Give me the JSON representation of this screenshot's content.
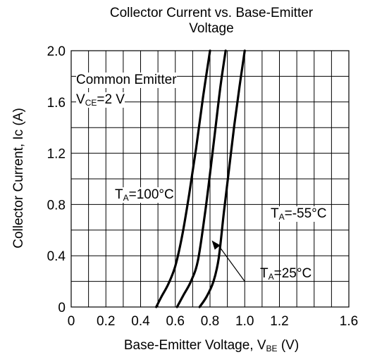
{
  "chart_data": {
    "type": "line",
    "title_line1": "Collector Current vs. Base-Emitter",
    "title_line2": "Voltage",
    "xlabel_main": "Base-Emitter Voltage, V",
    "xlabel_sub": "BE",
    "xlabel_unit": "(V)",
    "ylabel": "Collector Current, Ic (A)",
    "xlim": [
      0,
      1.6
    ],
    "ylim": [
      0,
      2.0
    ],
    "x_ticks": [
      "0",
      "0.2",
      "0.4",
      "0.6",
      "0.8",
      "1.0",
      "1.2",
      "1.6"
    ],
    "x_tick_values": [
      0,
      0.2,
      0.4,
      0.6,
      0.8,
      1.0,
      1.2,
      1.6
    ],
    "y_ticks": [
      "0",
      "0.4",
      "0.8",
      "1.2",
      "1.6",
      "2.0"
    ],
    "y_tick_values": [
      0,
      0.4,
      0.8,
      1.2,
      1.6,
      2.0
    ],
    "grid": true,
    "grid_x_step": 0.1,
    "grid_y_step": 0.2,
    "common_emitter_label": "Common Emitter",
    "vce_label_main": "V",
    "vce_label_sub": "CE",
    "vce_label_rest": "=2 V",
    "series": [
      {
        "name": "TA=100°C",
        "label_main": "T",
        "label_sub": "A",
        "label_rest": "=100°C",
        "x": [
          0.49,
          0.52,
          0.56,
          0.6,
          0.64,
          0.68,
          0.72,
          0.76,
          0.8
        ],
        "y": [
          0,
          0.08,
          0.18,
          0.32,
          0.56,
          0.88,
          1.24,
          1.64,
          2.0
        ]
      },
      {
        "name": "TA=25°C",
        "label_main": "T",
        "label_sub": "A",
        "label_rest": "=25°C",
        "x": [
          0.61,
          0.65,
          0.69,
          0.73,
          0.77,
          0.8,
          0.83,
          0.86,
          0.89
        ],
        "y": [
          0,
          0.1,
          0.2,
          0.36,
          0.72,
          1.04,
          1.38,
          1.72,
          2.0
        ]
      },
      {
        "name": "TA=-55°C",
        "label_main": "T",
        "label_sub": "A",
        "label_rest": "=-55°C",
        "x": [
          0.74,
          0.78,
          0.82,
          0.85,
          0.88,
          0.91,
          0.94,
          0.97,
          1.0
        ],
        "y": [
          0,
          0.08,
          0.2,
          0.38,
          0.74,
          1.08,
          1.42,
          1.72,
          2.0
        ]
      }
    ]
  }
}
